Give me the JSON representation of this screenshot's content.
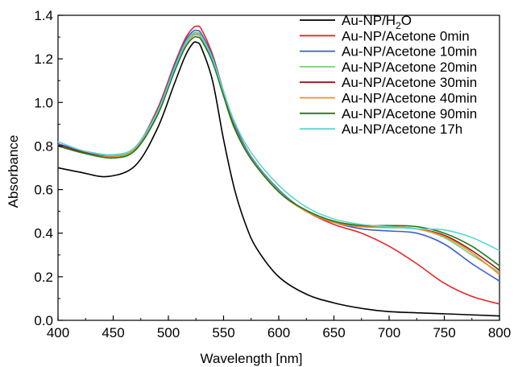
{
  "chart_data": {
    "type": "line",
    "xlabel": "Wavelength [nm]",
    "ylabel": "Absorbance",
    "xlim": [
      400,
      800
    ],
    "ylim": [
      0.0,
      1.4
    ],
    "xticks": [
      "400",
      "450",
      "500",
      "550",
      "600",
      "650",
      "700",
      "750",
      "800"
    ],
    "yticks": [
      "0.0",
      "0.2",
      "0.4",
      "0.6",
      "0.8",
      "1.0",
      "1.2",
      "1.4"
    ],
    "grid": false,
    "legend_position": "top-right",
    "series": [
      {
        "name": "Au-NP/H₂O",
        "legend_parts": [
          "Au-NP/H",
          "2",
          "O"
        ],
        "color": "#000000",
        "x": [
          400,
          420,
          445,
          470,
          490,
          505,
          515,
          522,
          526,
          530,
          540,
          550,
          560,
          570,
          580,
          600,
          625,
          650,
          675,
          700,
          750,
          800
        ],
        "y": [
          0.7,
          0.68,
          0.66,
          0.71,
          0.88,
          1.08,
          1.21,
          1.27,
          1.275,
          1.25,
          1.1,
          0.83,
          0.6,
          0.44,
          0.33,
          0.2,
          0.12,
          0.08,
          0.055,
          0.04,
          0.03,
          0.02
        ]
      },
      {
        "name": "Au-NP/Acetone 0min",
        "color": "#e8262b",
        "x": [
          400,
          425,
          450,
          470,
          490,
          505,
          515,
          522,
          526,
          530,
          540,
          550,
          560,
          575,
          600,
          625,
          650,
          675,
          700,
          725,
          750,
          775,
          800
        ],
        "y": [
          0.81,
          0.77,
          0.755,
          0.79,
          0.97,
          1.17,
          1.29,
          1.34,
          1.35,
          1.335,
          1.22,
          1.05,
          0.9,
          0.75,
          0.59,
          0.5,
          0.44,
          0.4,
          0.34,
          0.26,
          0.17,
          0.11,
          0.075
        ]
      },
      {
        "name": "Au-NP/Acetone 10min",
        "color": "#3a5fcd",
        "x": [
          400,
          425,
          450,
          470,
          490,
          505,
          515,
          522,
          526,
          530,
          540,
          550,
          560,
          575,
          600,
          625,
          650,
          675,
          700,
          725,
          750,
          775,
          800
        ],
        "y": [
          0.81,
          0.775,
          0.76,
          0.795,
          0.96,
          1.16,
          1.28,
          1.325,
          1.33,
          1.315,
          1.21,
          1.05,
          0.9,
          0.75,
          0.6,
          0.5,
          0.45,
          0.42,
          0.41,
          0.4,
          0.35,
          0.26,
          0.18
        ]
      },
      {
        "name": "Au-NP/Acetone 20min",
        "color": "#7ccd7c",
        "x": [
          400,
          425,
          450,
          470,
          490,
          505,
          515,
          522,
          526,
          530,
          540,
          550,
          560,
          575,
          600,
          625,
          650,
          675,
          700,
          725,
          750,
          775,
          800
        ],
        "y": [
          0.805,
          0.77,
          0.755,
          0.79,
          0.955,
          1.15,
          1.27,
          1.315,
          1.32,
          1.305,
          1.2,
          1.04,
          0.89,
          0.745,
          0.595,
          0.5,
          0.45,
          0.43,
          0.425,
          0.42,
          0.38,
          0.3,
          0.22
        ]
      },
      {
        "name": "Au-NP/Acetone 30min",
        "color": "#8b1a1a",
        "x": [
          400,
          425,
          450,
          470,
          490,
          505,
          515,
          522,
          526,
          530,
          540,
          550,
          560,
          575,
          600,
          625,
          650,
          675,
          700,
          725,
          750,
          775,
          800
        ],
        "y": [
          0.805,
          0.77,
          0.75,
          0.785,
          0.95,
          1.145,
          1.265,
          1.31,
          1.315,
          1.3,
          1.195,
          1.035,
          0.885,
          0.74,
          0.59,
          0.5,
          0.45,
          0.43,
          0.43,
          0.42,
          0.39,
          0.32,
          0.23
        ]
      },
      {
        "name": "Au-NP/Acetone 40min",
        "color": "#f28c28",
        "x": [
          400,
          425,
          450,
          470,
          490,
          505,
          515,
          522,
          526,
          530,
          540,
          550,
          560,
          575,
          600,
          625,
          650,
          675,
          700,
          725,
          750,
          775,
          800
        ],
        "y": [
          0.8,
          0.765,
          0.75,
          0.785,
          0.945,
          1.14,
          1.26,
          1.305,
          1.31,
          1.295,
          1.19,
          1.03,
          0.88,
          0.74,
          0.59,
          0.5,
          0.45,
          0.43,
          0.43,
          0.42,
          0.385,
          0.31,
          0.21
        ]
      },
      {
        "name": "Au-NP/Acetone 90min",
        "color": "#1f7a1f",
        "x": [
          400,
          425,
          450,
          470,
          490,
          505,
          515,
          522,
          526,
          530,
          540,
          550,
          560,
          575,
          600,
          625,
          650,
          675,
          700,
          725,
          750,
          775,
          800
        ],
        "y": [
          0.8,
          0.765,
          0.745,
          0.78,
          0.94,
          1.135,
          1.25,
          1.295,
          1.3,
          1.285,
          1.185,
          1.03,
          0.88,
          0.74,
          0.59,
          0.505,
          0.455,
          0.435,
          0.435,
          0.43,
          0.4,
          0.34,
          0.25
        ]
      },
      {
        "name": "Au-NP/Acetone 17h",
        "color": "#5fd3d3",
        "x": [
          400,
          425,
          450,
          470,
          490,
          505,
          515,
          522,
          526,
          530,
          540,
          550,
          560,
          575,
          600,
          625,
          650,
          675,
          700,
          725,
          750,
          775,
          800
        ],
        "y": [
          0.82,
          0.775,
          0.76,
          0.795,
          0.955,
          1.15,
          1.265,
          1.31,
          1.315,
          1.3,
          1.2,
          1.05,
          0.91,
          0.77,
          0.62,
          0.52,
          0.465,
          0.44,
          0.43,
          0.42,
          0.415,
          0.38,
          0.32
        ]
      }
    ]
  }
}
